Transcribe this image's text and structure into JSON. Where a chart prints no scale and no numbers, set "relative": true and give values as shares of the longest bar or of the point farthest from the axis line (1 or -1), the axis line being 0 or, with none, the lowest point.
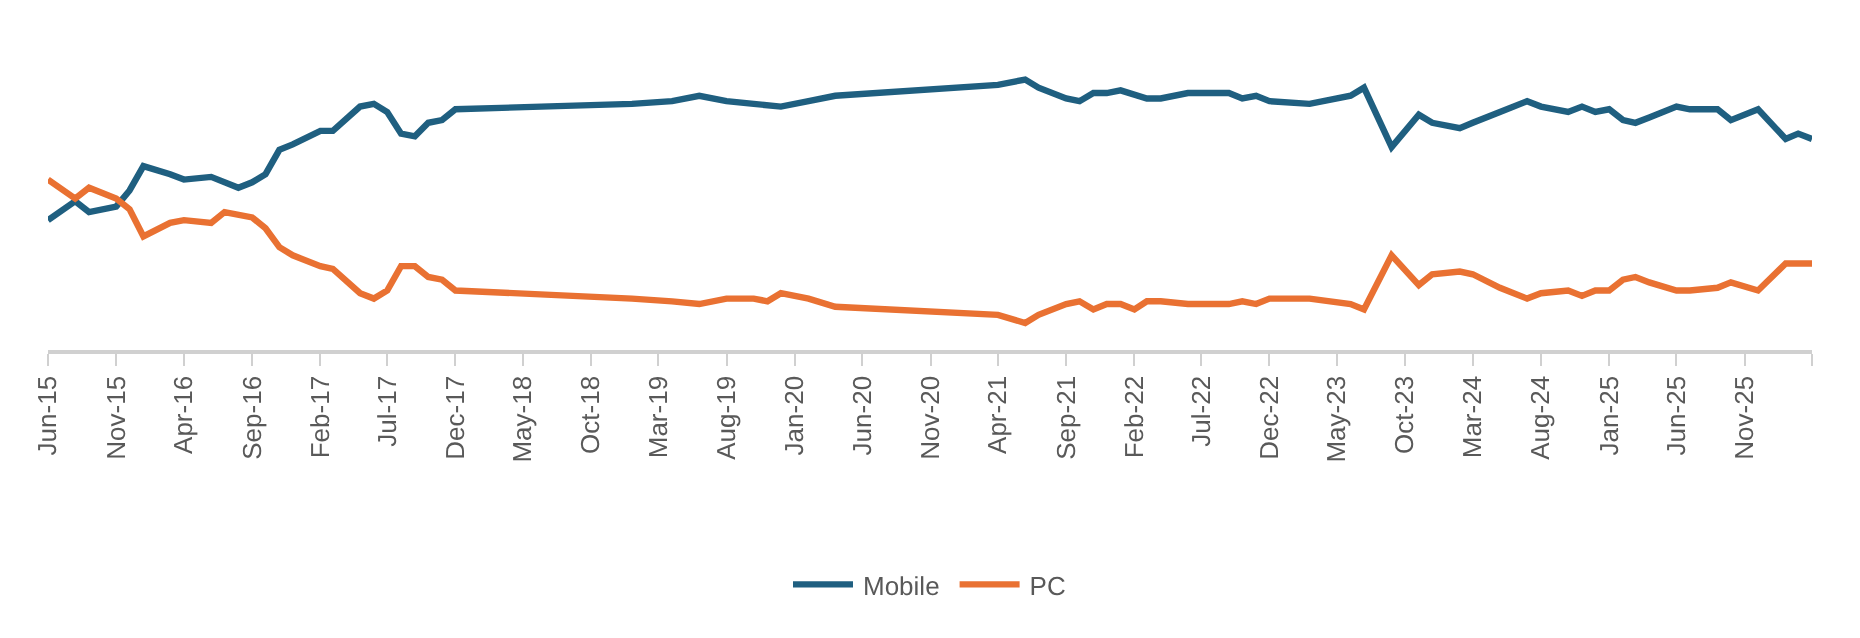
{
  "chart_data": {
    "type": "line",
    "relative": true,
    "legend": "bottom",
    "marker": "none",
    "line_style": "solid",
    "xlim": [
      "2015-06",
      "2026-04"
    ],
    "xticks": [
      {
        "value": "2015-06",
        "label": "Jun-15"
      },
      {
        "value": "2015-11",
        "label": "Nov-15"
      },
      {
        "value": "2016-04",
        "label": "Apr-16"
      },
      {
        "value": "2016-09",
        "label": "Sep-16"
      },
      {
        "value": "2017-02",
        "label": "Feb-17"
      },
      {
        "value": "2017-07",
        "label": "Jul-17"
      },
      {
        "value": "2017-12",
        "label": "Dec-17"
      },
      {
        "value": "2018-05",
        "label": "May-18"
      },
      {
        "value": "2018-10",
        "label": "Oct-18"
      },
      {
        "value": "2019-03",
        "label": "Mar-19"
      },
      {
        "value": "2019-08",
        "label": "Aug-19"
      },
      {
        "value": "2020-01",
        "label": "Jan-20"
      },
      {
        "value": "2020-06",
        "label": "Jun-20"
      },
      {
        "value": "2020-11",
        "label": "Nov-20"
      },
      {
        "value": "2021-04",
        "label": "Apr-21"
      },
      {
        "value": "2021-09",
        "label": "Sep-21"
      },
      {
        "value": "2022-02",
        "label": "Feb-22"
      },
      {
        "value": "2022-07",
        "label": "Jul-22"
      },
      {
        "value": "2022-12",
        "label": "Dec-22"
      },
      {
        "value": "2023-05",
        "label": "May-23"
      },
      {
        "value": "2023-10",
        "label": "Oct-23"
      },
      {
        "value": "2024-03",
        "label": "Mar-24"
      },
      {
        "value": "2024-08",
        "label": "Aug-24"
      },
      {
        "value": "2025-01",
        "label": "Jan-25"
      },
      {
        "value": "2025-06",
        "label": "Jun-25"
      },
      {
        "value": "2025-11",
        "label": "Nov-25"
      },
      {
        "value": "2026-04",
        "label": null
      }
    ],
    "series": [
      {
        "name": "Mobile",
        "color": "#1f5f80",
        "x": [
          "2015-06",
          "2015-08",
          "2015-09",
          "2015-11",
          "2015-12",
          "2016-01",
          "2016-03",
          "2016-04",
          "2016-06",
          "2016-08",
          "2016-09",
          "2016-10",
          "2016-11",
          "2016-12",
          "2017-02",
          "2017-03",
          "2017-05",
          "2017-06",
          "2017-07",
          "2017-08",
          "2017-09",
          "2017-10",
          "2017-11",
          "2017-12",
          "2019-01",
          "2019-04",
          "2019-06",
          "2019-08",
          "2019-10",
          "2019-12",
          "2020-02",
          "2020-04",
          "2021-04",
          "2021-06",
          "2021-07",
          "2021-09",
          "2021-10",
          "2021-11",
          "2021-12",
          "2022-01",
          "2022-03",
          "2022-04",
          "2022-06",
          "2022-09",
          "2022-10",
          "2022-11",
          "2022-12",
          "2023-03",
          "2023-06",
          "2023-07",
          "2023-09",
          "2023-11",
          "2023-12",
          "2024-02",
          "2024-03",
          "2024-05",
          "2024-07",
          "2024-08",
          "2024-10",
          "2024-11",
          "2024-12",
          "2025-01",
          "2025-02",
          "2025-03",
          "2025-04",
          "2025-06",
          "2025-07",
          "2025-09",
          "2025-10",
          "2025-12",
          "2026-02",
          "2026-03",
          "2026-04"
        ],
        "values": [
          0.48,
          0.55,
          0.51,
          0.53,
          0.59,
          0.68,
          0.65,
          0.63,
          0.64,
          0.6,
          0.62,
          0.65,
          0.74,
          0.76,
          0.81,
          0.81,
          0.9,
          0.91,
          0.88,
          0.8,
          0.79,
          0.84,
          0.85,
          0.89,
          0.91,
          0.92,
          0.94,
          0.92,
          0.91,
          0.9,
          0.92,
          0.94,
          0.98,
          1.0,
          0.97,
          0.93,
          0.92,
          0.95,
          0.95,
          0.96,
          0.93,
          0.93,
          0.95,
          0.95,
          0.93,
          0.94,
          0.92,
          0.91,
          0.94,
          0.97,
          0.75,
          0.87,
          0.84,
          0.82,
          0.84,
          0.88,
          0.92,
          0.9,
          0.88,
          0.9,
          0.88,
          0.89,
          0.85,
          0.84,
          0.86,
          0.9,
          0.89,
          0.89,
          0.85,
          0.89,
          0.78,
          0.8,
          0.78
        ]
      },
      {
        "name": "PC",
        "color": "#e97132",
        "x": [
          "2015-06",
          "2015-08",
          "2015-09",
          "2015-11",
          "2015-12",
          "2016-01",
          "2016-03",
          "2016-04",
          "2016-06",
          "2016-07",
          "2016-09",
          "2016-10",
          "2016-11",
          "2016-12",
          "2017-02",
          "2017-03",
          "2017-05",
          "2017-06",
          "2017-07",
          "2017-08",
          "2017-09",
          "2017-10",
          "2017-11",
          "2017-12",
          "2019-01",
          "2019-04",
          "2019-06",
          "2019-08",
          "2019-10",
          "2019-11",
          "2019-12",
          "2020-02",
          "2020-04",
          "2021-04",
          "2021-06",
          "2021-07",
          "2021-09",
          "2021-10",
          "2021-11",
          "2021-12",
          "2022-01",
          "2022-02",
          "2022-03",
          "2022-04",
          "2022-06",
          "2022-09",
          "2022-10",
          "2022-11",
          "2022-12",
          "2023-02",
          "2023-03",
          "2023-06",
          "2023-07",
          "2023-09",
          "2023-11",
          "2023-12",
          "2024-02",
          "2024-03",
          "2024-05",
          "2024-07",
          "2024-08",
          "2024-10",
          "2024-11",
          "2024-12",
          "2025-01",
          "2025-02",
          "2025-03",
          "2025-04",
          "2025-06",
          "2025-07",
          "2025-09",
          "2025-10",
          "2025-12",
          "2026-02",
          "2026-03",
          "2026-04"
        ],
        "values": [
          0.63,
          0.56,
          0.6,
          0.56,
          0.52,
          0.42,
          0.47,
          0.48,
          0.47,
          0.51,
          0.49,
          0.45,
          0.38,
          0.35,
          0.31,
          0.3,
          0.21,
          0.19,
          0.22,
          0.31,
          0.31,
          0.27,
          0.26,
          0.22,
          0.19,
          0.18,
          0.17,
          0.19,
          0.19,
          0.18,
          0.21,
          0.19,
          0.16,
          0.13,
          0.1,
          0.13,
          0.17,
          0.18,
          0.15,
          0.17,
          0.17,
          0.15,
          0.18,
          0.18,
          0.17,
          0.17,
          0.18,
          0.17,
          0.19,
          0.19,
          0.19,
          0.17,
          0.15,
          0.35,
          0.24,
          0.28,
          0.29,
          0.28,
          0.23,
          0.19,
          0.21,
          0.22,
          0.2,
          0.22,
          0.22,
          0.26,
          0.27,
          0.25,
          0.22,
          0.22,
          0.23,
          0.25,
          0.22,
          0.32,
          0.32,
          0.32
        ]
      }
    ]
  }
}
